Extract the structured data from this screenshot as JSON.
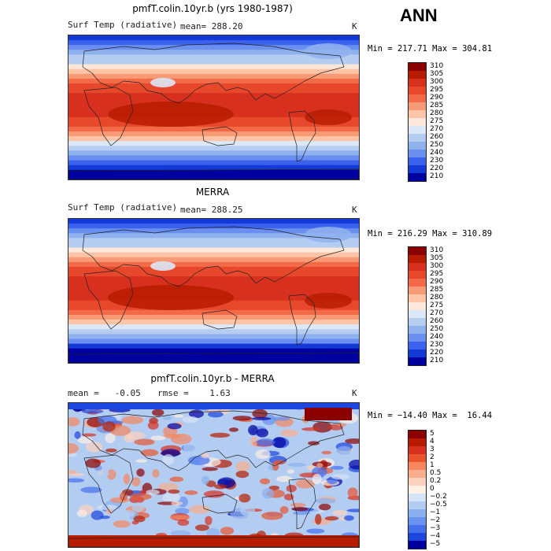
{
  "season": "ANN",
  "units_label": "K",
  "chart_data": [
    {
      "type": "heatmap",
      "title": "pmfT.colin.10yr.b (yrs 1980-1987)",
      "variable": "Surf Temp (radiative)",
      "mean_text": "mean= 288.20",
      "mean": 288.2,
      "min": 217.71,
      "max": 304.81,
      "minmax_text": "Min = 217.71 Max = 304.81",
      "levels": [
        "310",
        "305",
        "300",
        "295",
        "290",
        "285",
        "280",
        "275",
        "270",
        "260",
        "250",
        "240",
        "230",
        "220",
        "210"
      ],
      "colors": [
        "#8b0000",
        "#b71c00",
        "#d7301f",
        "#e7482b",
        "#f26a47",
        "#f89a75",
        "#fdc4a8",
        "#fde7d8",
        "#dbe8f7",
        "#b4cdf1",
        "#8fb1ee",
        "#6a8ff0",
        "#3b62ec",
        "#1339d6",
        "#0000a0"
      ]
    },
    {
      "type": "heatmap",
      "title": "MERRA",
      "variable": "Surf Temp (radiative)",
      "mean_text": "mean= 288.25",
      "mean": 288.25,
      "min": 216.29,
      "max": 310.89,
      "minmax_text": "Min = 216.29 Max = 310.89",
      "levels": [
        "310",
        "305",
        "300",
        "295",
        "290",
        "285",
        "280",
        "275",
        "270",
        "260",
        "250",
        "240",
        "230",
        "220",
        "210"
      ],
      "colors": [
        "#8b0000",
        "#b71c00",
        "#d7301f",
        "#e7482b",
        "#f26a47",
        "#f89a75",
        "#fdc4a8",
        "#fde7d8",
        "#dbe8f7",
        "#b4cdf1",
        "#8fb1ee",
        "#6a8ff0",
        "#3b62ec",
        "#1339d6",
        "#0000a0"
      ]
    },
    {
      "type": "heatmap",
      "title": "pmfT.colin.10yr.b - MERRA",
      "mean_text": "mean =   -0.05",
      "rmse_text": "rmse =    1.63",
      "mean": -0.05,
      "rmse": 1.63,
      "min": -14.4,
      "max": 16.44,
      "minmax_text": "Min = −14.40 Max =  16.44",
      "levels": [
        "5",
        "4",
        "3",
        "2",
        "1",
        "0.5",
        "0.2",
        "0",
        "−0.2",
        "−0.5",
        "−1",
        "−2",
        "−3",
        "−4",
        "−5"
      ],
      "colors": [
        "#8b0000",
        "#b71c00",
        "#d7301f",
        "#e9552f",
        "#f5865e",
        "#f9ae8e",
        "#fcd2bd",
        "#fff0e6",
        "#d5e4f7",
        "#b3cdf2",
        "#8cb0ef",
        "#6a92f0",
        "#4470ec",
        "#1c46dd",
        "#0000a0"
      ]
    }
  ]
}
